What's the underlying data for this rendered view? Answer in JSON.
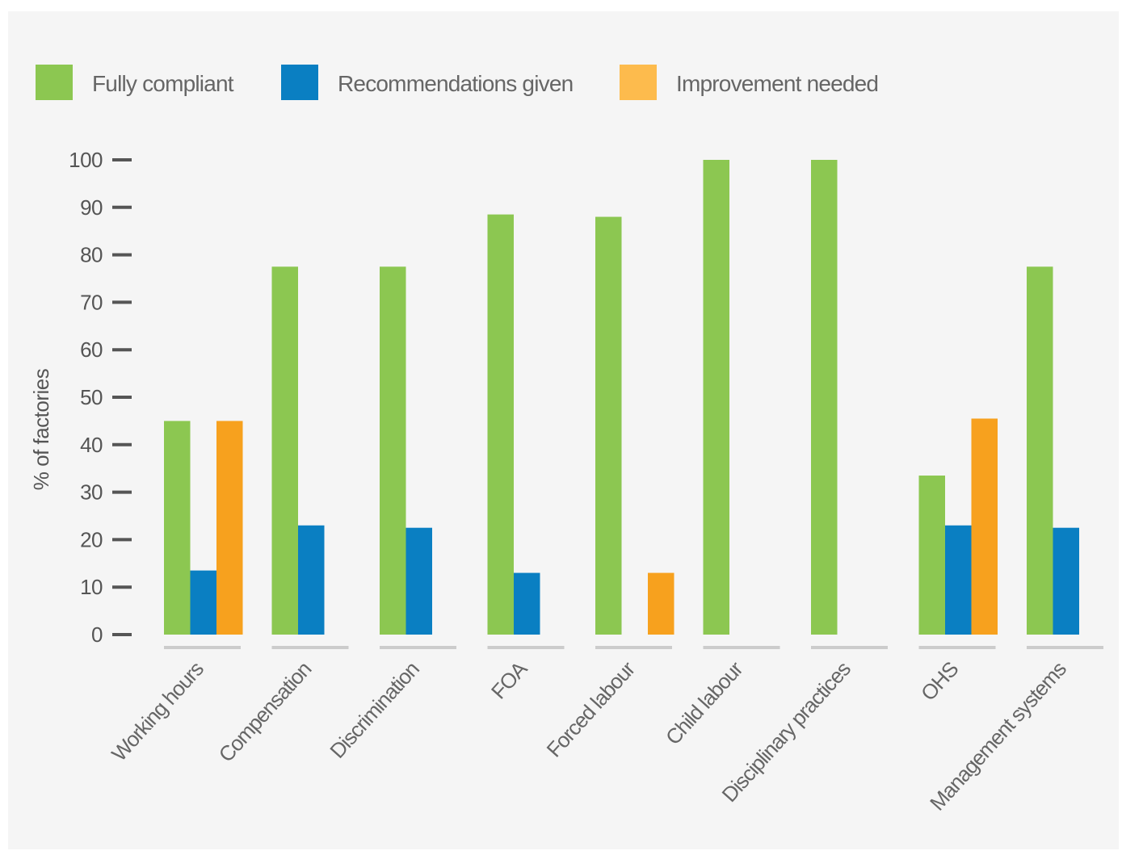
{
  "colors": {
    "fully_compliant": "#8cc751",
    "recommendations_given": "#0a7fc2",
    "improvement_needed": "#f7a11e",
    "legend_improvement": "#fdbb4d",
    "axis_tick": "#555555",
    "baseline": "#cccccc",
    "background": "#f5f5f5"
  },
  "chart_data": {
    "type": "bar",
    "title": "",
    "xlabel": "",
    "ylabel": "% of factories",
    "ylim": [
      0,
      100
    ],
    "yticks": [
      0,
      10,
      20,
      30,
      40,
      50,
      60,
      70,
      80,
      90,
      100
    ],
    "legend_position": "top",
    "categories": [
      "Working hours",
      "Compensation",
      "Discrimination",
      "FOA",
      "Forced labour",
      "Child labour",
      "Disciplinary practices",
      "OHS",
      "Management systems"
    ],
    "series": [
      {
        "name": "Fully compliant",
        "color": "#8cc751",
        "values": [
          45,
          77.5,
          77.5,
          88.5,
          88,
          100,
          100,
          33.5,
          77.5
        ]
      },
      {
        "name": "Recommendations given",
        "color": "#0a7fc2",
        "values": [
          13.5,
          23,
          22.5,
          13,
          null,
          null,
          null,
          23,
          22.5
        ]
      },
      {
        "name": "Improvement needed",
        "color": "#f7a11e",
        "values": [
          45,
          null,
          null,
          null,
          13,
          null,
          null,
          45.5,
          null
        ]
      }
    ]
  }
}
